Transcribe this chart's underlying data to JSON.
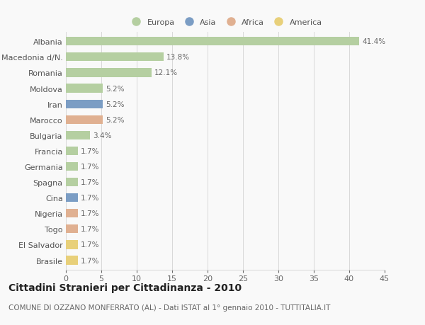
{
  "countries": [
    "Albania",
    "Macedonia d/N.",
    "Romania",
    "Moldova",
    "Iran",
    "Marocco",
    "Bulgaria",
    "Francia",
    "Germania",
    "Spagna",
    "Cina",
    "Nigeria",
    "Togo",
    "El Salvador",
    "Brasile"
  ],
  "values": [
    41.4,
    13.8,
    12.1,
    5.2,
    5.2,
    5.2,
    3.4,
    1.7,
    1.7,
    1.7,
    1.7,
    1.7,
    1.7,
    1.7,
    1.7
  ],
  "continents": [
    "Europa",
    "Europa",
    "Europa",
    "Europa",
    "Asia",
    "Africa",
    "Europa",
    "Europa",
    "Europa",
    "Europa",
    "Asia",
    "Africa",
    "Africa",
    "America",
    "America"
  ],
  "colors": {
    "Europa": "#b5cfa1",
    "Asia": "#7b9dc4",
    "Africa": "#e0b091",
    "America": "#e8d07a"
  },
  "xlim": [
    0,
    45
  ],
  "xticks": [
    0,
    5,
    10,
    15,
    20,
    25,
    30,
    35,
    40,
    45
  ],
  "title": "Cittadini Stranieri per Cittadinanza - 2010",
  "subtitle": "COMUNE DI OZZANO MONFERRATO (AL) - Dati ISTAT al 1° gennaio 2010 - TUTTITALIA.IT",
  "background_color": "#f9f9f9",
  "grid_color": "#d8d8d8",
  "title_fontsize": 10,
  "subtitle_fontsize": 7.5,
  "label_fontsize": 8,
  "tick_fontsize": 8,
  "value_fontsize": 7.5,
  "bar_height": 0.55
}
